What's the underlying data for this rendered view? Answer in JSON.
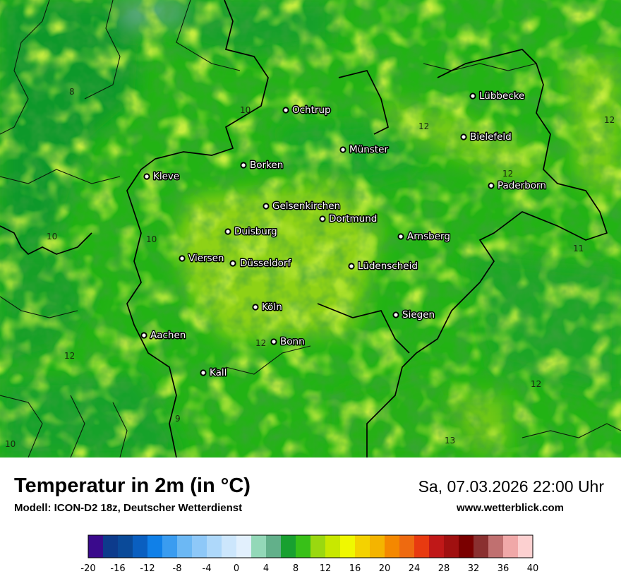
{
  "title": "Temperatur in 2m (in °C)",
  "model": "Modell: ICON-D2 18z, Deutscher Wetterdienst",
  "datetime": "Sa, 07.03.2026 22:00 Uhr",
  "website": "www.wetterblick.com",
  "cities": [
    {
      "name": "Lübbecke"
    },
    {
      "name": "Ochtrup"
    },
    {
      "name": "Bielefeld"
    },
    {
      "name": "Münster"
    },
    {
      "name": "Paderborn"
    },
    {
      "name": "Borken"
    },
    {
      "name": "Kleve"
    },
    {
      "name": "Gelsenkirchen"
    },
    {
      "name": "Dortmund"
    },
    {
      "name": "Duisburg"
    },
    {
      "name": "Arnsberg"
    },
    {
      "name": "Viersen"
    },
    {
      "name": "Düsseldorf"
    },
    {
      "name": "Lüdenscheid"
    },
    {
      "name": "Köln"
    },
    {
      "name": "Siegen"
    },
    {
      "name": "Aachen"
    },
    {
      "name": "Bonn"
    },
    {
      "name": "Kall"
    }
  ],
  "isotherm_labels": [
    "8",
    "10",
    "12",
    "12",
    "12",
    "10",
    "10",
    "11",
    "12",
    "12",
    "12",
    "9",
    "10",
    "13"
  ],
  "legend": {
    "ticks": [
      "-20",
      "-16",
      "-12",
      "-8",
      "-4",
      "0",
      "4",
      "8",
      "12",
      "16",
      "20",
      "24",
      "28",
      "32",
      "36",
      "40"
    ],
    "colors": [
      "#3a0a8c",
      "#0d3b8c",
      "#0a4a99",
      "#0a5fc0",
      "#1080e8",
      "#3a9cf0",
      "#6cb8f4",
      "#8ec8f8",
      "#aed8fa",
      "#cce6fc",
      "#e2f0fd",
      "#93d8b8",
      "#62b08a",
      "#18a030",
      "#38c018",
      "#9ad810",
      "#c8e800",
      "#f0f800",
      "#f4d200",
      "#f4b400",
      "#f48800",
      "#ee6a10",
      "#e83a10",
      "#c01818",
      "#a01010",
      "#7a0000",
      "#8a3030",
      "#c07070",
      "#f0a8a8",
      "#fcd0d0"
    ]
  }
}
